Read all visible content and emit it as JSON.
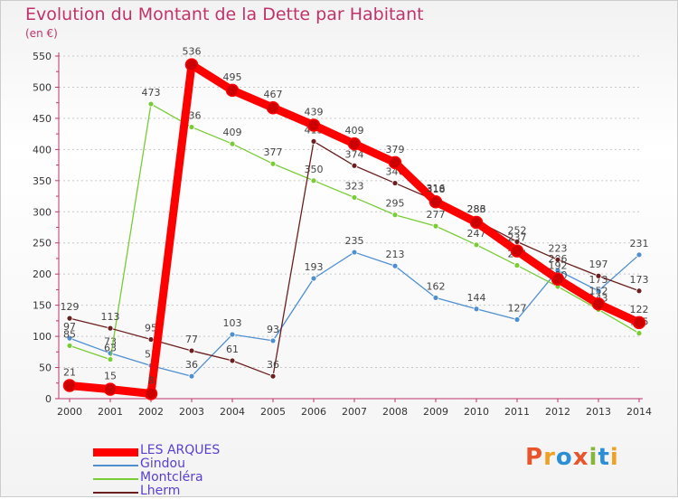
{
  "chart_data": {
    "type": "line",
    "title": "Evolution du Montant de la Dette par Habitant",
    "ylabel": "(en €)",
    "xlabel": "",
    "ylim": [
      0,
      550
    ],
    "yticks": [
      0,
      50,
      100,
      150,
      200,
      250,
      300,
      350,
      400,
      450,
      500,
      550
    ],
    "categories": [
      "2000",
      "2001",
      "2002",
      "2003",
      "2004",
      "2005",
      "2006",
      "2007",
      "2008",
      "2009",
      "2010",
      "2011",
      "2012",
      "2013",
      "2014"
    ],
    "series": [
      {
        "name": "LES ARQUES",
        "color": "#ff0000",
        "values": [
          21,
          15,
          8,
          536,
          495,
          467,
          439,
          409,
          379,
          316,
          283,
          237,
          192,
          152,
          122
        ]
      },
      {
        "name": "Gindou",
        "color": "#4f8fd0",
        "values": [
          97,
          73,
          53,
          36,
          103,
          93,
          193,
          235,
          213,
          162,
          144,
          127,
          206,
          173,
          231
        ]
      },
      {
        "name": "Montcléra",
        "color": "#78cc34",
        "values": [
          85,
          63,
          473,
          436,
          409,
          377,
          350,
          323,
          295,
          277,
          247,
          214,
          180,
          143,
          105
        ]
      },
      {
        "name": "Lherm",
        "color": "#6b1f1f",
        "values": [
          129,
          113,
          95,
          77,
          61,
          36,
          413,
          374,
          346,
          318,
          286,
          252,
          223,
          197,
          173
        ]
      }
    ]
  },
  "logo": {
    "text": "Proxiti",
    "colors": [
      "#e8542c",
      "#f0a125",
      "#2c8fd6",
      "#e8542c",
      "#86b63a",
      "#2c8fd6",
      "#f0a125"
    ]
  }
}
